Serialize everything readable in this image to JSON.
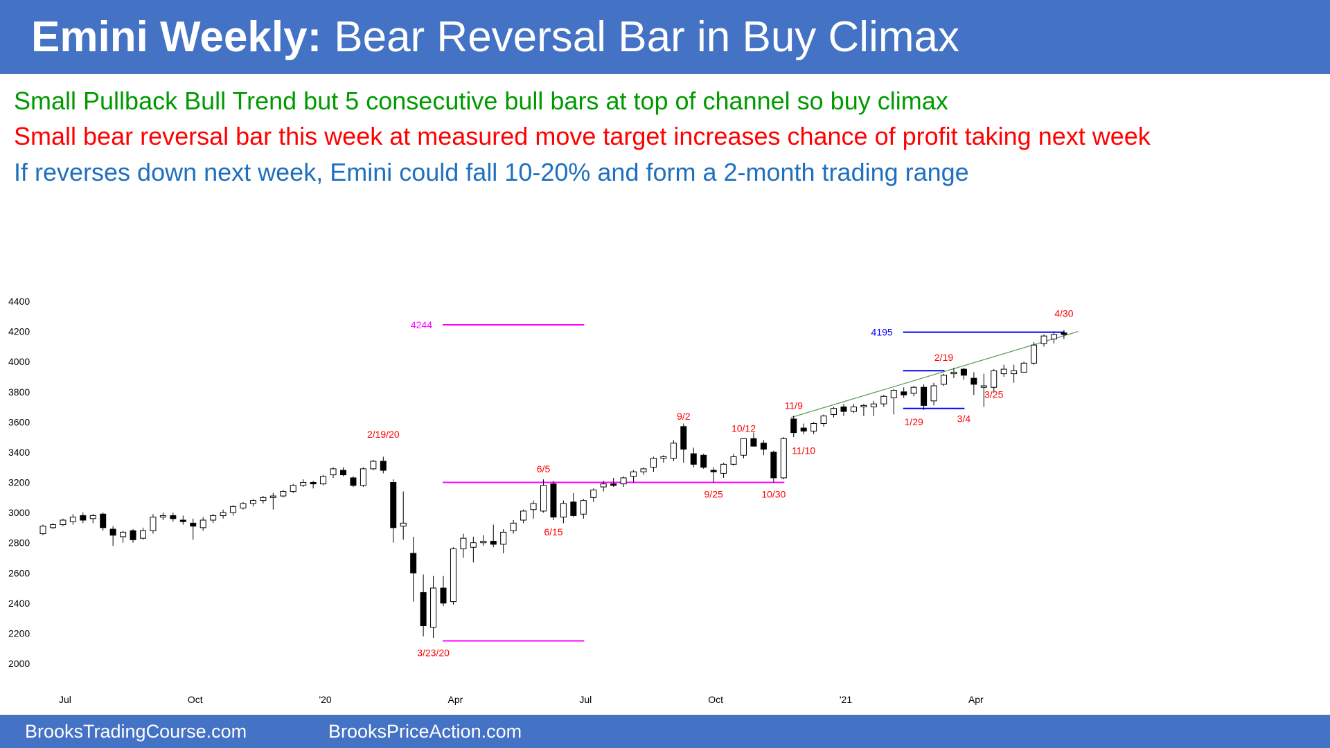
{
  "header": {
    "title_bold": "Emini Weekly:",
    "title_rest": "Bear Reversal Bar in Buy Climax"
  },
  "bullets": [
    {
      "text": "Small Pullback Bull Trend but 5 consecutive bull bars at top of channel so buy climax",
      "color": "#009a00"
    },
    {
      "text": "Small bear reversal bar this week at measured move target increases chance of profit taking next week",
      "color": "#ff0000"
    },
    {
      "text": "If reverses down next week, Emini could fall 10-20% and form a 2-month trading range",
      "color": "#1f6fbf"
    }
  ],
  "footer": {
    "left": "BrooksTradingCourse.com",
    "right": "BrooksPriceAction.com"
  },
  "colors": {
    "header_bg": "#4472c4",
    "annotation": "#ff0000",
    "magenta": "#ff00ff",
    "blue_line": "#0000ff",
    "trendline": "#5aa05a"
  },
  "chart_data": {
    "type": "candlestick",
    "title": "",
    "ylim": [
      1950,
      4400
    ],
    "y_ticks": [
      2000,
      2200,
      2400,
      2600,
      2800,
      3000,
      3200,
      3400,
      3600,
      3800,
      4000,
      4200,
      4400
    ],
    "x_tick_labels": [
      {
        "label": "Jul",
        "bar": 2
      },
      {
        "label": "Oct",
        "bar": 15
      },
      {
        "label": "'20",
        "bar": 28
      },
      {
        "label": "Apr",
        "bar": 41
      },
      {
        "label": "Jul",
        "bar": 54
      },
      {
        "label": "Oct",
        "bar": 67
      },
      {
        "label": "'21",
        "bar": 80
      },
      {
        "label": "Apr",
        "bar": 93
      }
    ],
    "bars": [
      [
        2860,
        2920,
        2850,
        2910
      ],
      [
        2900,
        2930,
        2890,
        2920
      ],
      [
        2920,
        2960,
        2910,
        2950
      ],
      [
        2940,
        2990,
        2920,
        2970
      ],
      [
        2980,
        3000,
        2930,
        2950
      ],
      [
        2960,
        2990,
        2930,
        2980
      ],
      [
        2990,
        3000,
        2880,
        2900
      ],
      [
        2890,
        2910,
        2780,
        2850
      ],
      [
        2840,
        2880,
        2800,
        2870
      ],
      [
        2880,
        2890,
        2800,
        2820
      ],
      [
        2830,
        2900,
        2820,
        2880
      ],
      [
        2880,
        2990,
        2860,
        2970
      ],
      [
        2970,
        3000,
        2950,
        2980
      ],
      [
        2980,
        3000,
        2940,
        2960
      ],
      [
        2950,
        2980,
        2920,
        2940
      ],
      [
        2930,
        2960,
        2820,
        2910
      ],
      [
        2900,
        2970,
        2880,
        2950
      ],
      [
        2950,
        2990,
        2930,
        2980
      ],
      [
        2980,
        3020,
        2960,
        3000
      ],
      [
        3000,
        3050,
        2980,
        3040
      ],
      [
        3030,
        3070,
        3020,
        3060
      ],
      [
        3060,
        3090,
        3040,
        3080
      ],
      [
        3080,
        3110,
        3060,
        3100
      ],
      [
        3100,
        3130,
        3020,
        3110
      ],
      [
        3110,
        3150,
        3100,
        3140
      ],
      [
        3140,
        3190,
        3130,
        3180
      ],
      [
        3180,
        3220,
        3170,
        3200
      ],
      [
        3200,
        3210,
        3160,
        3190
      ],
      [
        3190,
        3250,
        3180,
        3240
      ],
      [
        3250,
        3300,
        3230,
        3290
      ],
      [
        3280,
        3300,
        3240,
        3250
      ],
      [
        3230,
        3240,
        3170,
        3180
      ],
      [
        3180,
        3300,
        3170,
        3290
      ],
      [
        3290,
        3350,
        3280,
        3340
      ],
      [
        3340,
        3370,
        3260,
        3280
      ],
      [
        3200,
        3220,
        2800,
        2900
      ],
      [
        2910,
        3140,
        2820,
        2930
      ],
      [
        2730,
        2840,
        2410,
        2600
      ],
      [
        2470,
        2590,
        2180,
        2250
      ],
      [
        2240,
        2580,
        2170,
        2500
      ],
      [
        2500,
        2580,
        2380,
        2400
      ],
      [
        2410,
        2770,
        2390,
        2760
      ],
      [
        2760,
        2860,
        2700,
        2830
      ],
      [
        2770,
        2840,
        2670,
        2800
      ],
      [
        2800,
        2850,
        2780,
        2810
      ],
      [
        2810,
        2920,
        2770,
        2790
      ],
      [
        2790,
        2890,
        2730,
        2870
      ],
      [
        2880,
        2950,
        2860,
        2930
      ],
      [
        2950,
        3020,
        2930,
        3010
      ],
      [
        3020,
        3080,
        2960,
        3060
      ],
      [
        3010,
        3220,
        3000,
        3180
      ],
      [
        3190,
        3210,
        2950,
        2970
      ],
      [
        2970,
        3080,
        2930,
        3060
      ],
      [
        3070,
        3130,
        2970,
        2980
      ],
      [
        2990,
        3090,
        2960,
        3080
      ],
      [
        3100,
        3160,
        3070,
        3150
      ],
      [
        3170,
        3210,
        3140,
        3190
      ],
      [
        3190,
        3230,
        3170,
        3180
      ],
      [
        3190,
        3240,
        3170,
        3230
      ],
      [
        3240,
        3280,
        3200,
        3270
      ],
      [
        3270,
        3300,
        3250,
        3290
      ],
      [
        3300,
        3370,
        3270,
        3360
      ],
      [
        3360,
        3380,
        3330,
        3370
      ],
      [
        3360,
        3480,
        3340,
        3460
      ],
      [
        3570,
        3590,
        3330,
        3420
      ],
      [
        3390,
        3430,
        3300,
        3320
      ],
      [
        3380,
        3390,
        3290,
        3300
      ],
      [
        3280,
        3300,
        3200,
        3270
      ],
      [
        3260,
        3330,
        3230,
        3320
      ],
      [
        3320,
        3390,
        3310,
        3370
      ],
      [
        3380,
        3490,
        3360,
        3490
      ],
      [
        3490,
        3530,
        3450,
        3440
      ],
      [
        3460,
        3480,
        3380,
        3420
      ],
      [
        3400,
        3410,
        3200,
        3230
      ],
      [
        3230,
        3500,
        3220,
        3490
      ],
      [
        3620,
        3640,
        3500,
        3530
      ],
      [
        3560,
        3590,
        3520,
        3540
      ],
      [
        3540,
        3600,
        3520,
        3590
      ],
      [
        3590,
        3650,
        3570,
        3640
      ],
      [
        3650,
        3700,
        3630,
        3690
      ],
      [
        3700,
        3720,
        3640,
        3670
      ],
      [
        3670,
        3720,
        3660,
        3700
      ],
      [
        3700,
        3720,
        3640,
        3710
      ],
      [
        3700,
        3740,
        3640,
        3720
      ],
      [
        3720,
        3780,
        3700,
        3770
      ],
      [
        3760,
        3820,
        3650,
        3810
      ],
      [
        3800,
        3830,
        3760,
        3780
      ],
      [
        3790,
        3840,
        3770,
        3830
      ],
      [
        3830,
        3850,
        3680,
        3710
      ],
      [
        3740,
        3860,
        3710,
        3840
      ],
      [
        3850,
        3920,
        3840,
        3910
      ],
      [
        3920,
        3960,
        3890,
        3930
      ],
      [
        3950,
        3960,
        3880,
        3910
      ],
      [
        3890,
        3930,
        3780,
        3850
      ],
      [
        3830,
        3920,
        3700,
        3840
      ],
      [
        3830,
        3950,
        3800,
        3940
      ],
      [
        3920,
        3980,
        3900,
        3950
      ],
      [
        3920,
        3980,
        3860,
        3940
      ],
      [
        3930,
        4000,
        3930,
        3990
      ],
      [
        3990,
        4130,
        3980,
        4110
      ],
      [
        4120,
        4180,
        4100,
        4170
      ],
      [
        4150,
        4200,
        4120,
        4180
      ],
      [
        4190,
        4210,
        4150,
        4180
      ]
    ],
    "hlines": [
      {
        "label": "4244",
        "y": 4244,
        "from_bar": 40,
        "to_bar": 54,
        "color": "#ff00ff"
      },
      {
        "label": "",
        "y": 3200,
        "from_bar": 40,
        "to_bar": 74,
        "color": "#ff00ff"
      },
      {
        "label": "",
        "y": 2150,
        "from_bar": 40,
        "to_bar": 54,
        "color": "#ff00ff"
      },
      {
        "label": "4195",
        "y": 4195,
        "from_bar": 86,
        "to_bar": 102,
        "color": "#0000ff"
      },
      {
        "label": "",
        "y": 3940,
        "from_bar": 86,
        "to_bar": 90,
        "color": "#0000ff"
      },
      {
        "label": "",
        "y": 3690,
        "from_bar": 86,
        "to_bar": 92,
        "color": "#0000ff"
      }
    ],
    "trendline": {
      "from": [
        75,
        3630
      ],
      "to": [
        103,
        4200
      ],
      "color": "#5aa05a"
    },
    "annotations": [
      {
        "text": "2/19/20",
        "bar": 34,
        "y": 3450,
        "pos": "above"
      },
      {
        "text": "3/23/20",
        "bar": 39,
        "y": 2150,
        "pos": "below"
      },
      {
        "text": "6/5",
        "bar": 50,
        "y": 3220,
        "pos": "above"
      },
      {
        "text": "6/15",
        "bar": 51,
        "y": 2950,
        "pos": "below"
      },
      {
        "text": "9/2",
        "bar": 64,
        "y": 3570,
        "pos": "above"
      },
      {
        "text": "9/25",
        "bar": 67,
        "y": 3200,
        "pos": "below"
      },
      {
        "text": "10/12",
        "bar": 70,
        "y": 3490,
        "pos": "above"
      },
      {
        "text": "10/30",
        "bar": 73,
        "y": 3200,
        "pos": "below"
      },
      {
        "text": "11/9",
        "bar": 75,
        "y": 3640,
        "pos": "above"
      },
      {
        "text": "11/10",
        "bar": 76,
        "y": 3490,
        "pos": "below"
      },
      {
        "text": "1/29",
        "bar": 87,
        "y": 3680,
        "pos": "below"
      },
      {
        "text": "2/19",
        "bar": 90,
        "y": 3960,
        "pos": "above"
      },
      {
        "text": "3/4",
        "bar": 92,
        "y": 3700,
        "pos": "below"
      },
      {
        "text": "3/25",
        "bar": 95,
        "y": 3860,
        "pos": "below"
      },
      {
        "text": "4/30",
        "bar": 102,
        "y": 4250,
        "pos": "above"
      }
    ]
  }
}
